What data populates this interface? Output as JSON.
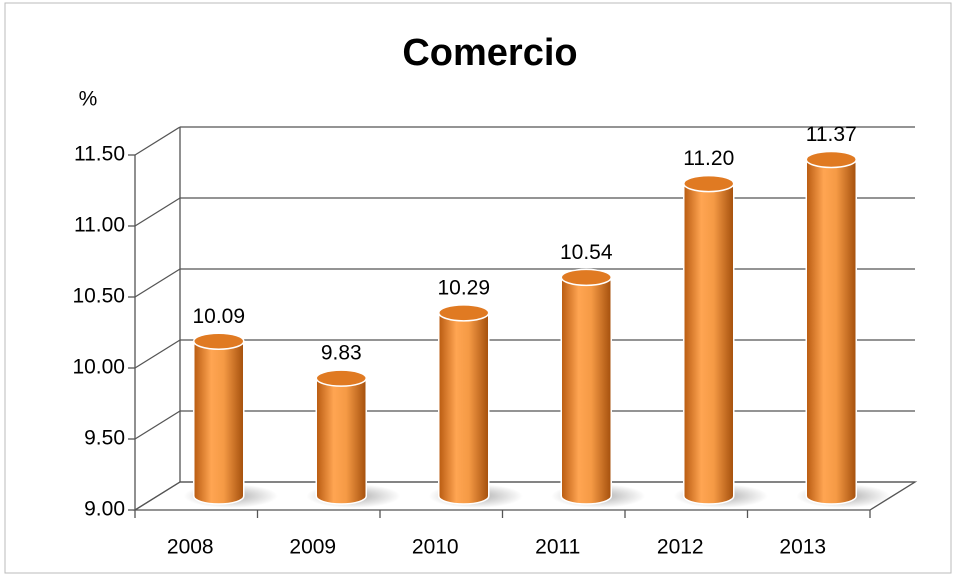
{
  "chart_data": {
    "type": "bar3d",
    "title": "Comercio",
    "y_label": "%",
    "categories": [
      "2008",
      "2009",
      "2010",
      "2011",
      "2012",
      "2013"
    ],
    "values": [
      10.09,
      9.83,
      10.29,
      10.54,
      11.2,
      11.37
    ],
    "value_labels": [
      "10.09",
      "9.83",
      "10.29",
      "10.54",
      "11.20",
      "11.37"
    ],
    "color": "#f28a2c",
    "ylim": [
      9,
      11.5
    ],
    "yticks": [
      {
        "value": 9,
        "label": "9.00"
      },
      {
        "value": 9.5,
        "label": "9.50"
      },
      {
        "value": 10,
        "label": "10.00"
      },
      {
        "value": 10.5,
        "label": "10.50"
      },
      {
        "value": 11,
        "label": "11.00"
      },
      {
        "value": 11.5,
        "label": "11.50"
      }
    ],
    "grid": true
  }
}
